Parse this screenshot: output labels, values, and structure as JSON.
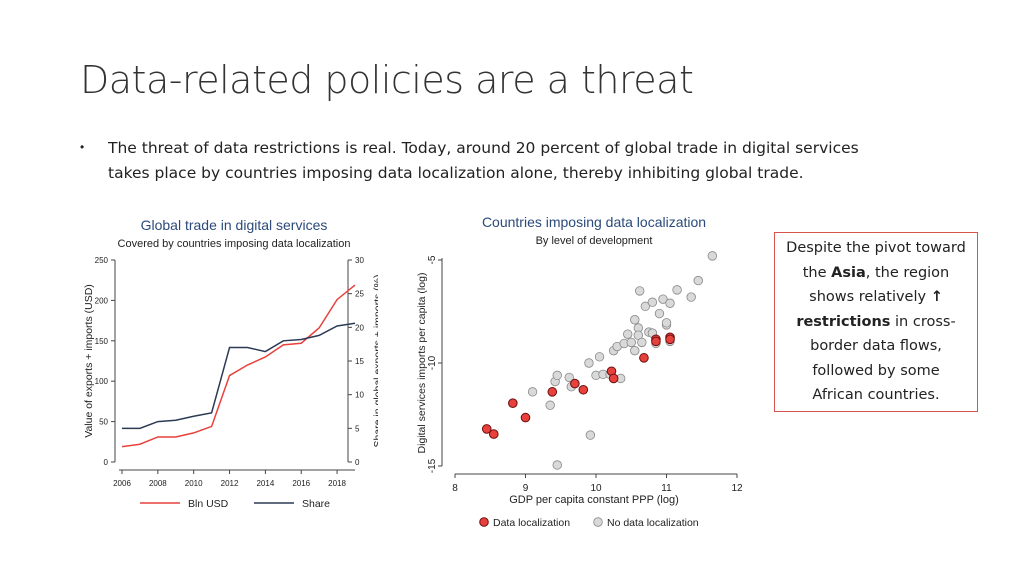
{
  "slide": {
    "title": "Data-related policies are a threat",
    "bullet_symbol": "•",
    "bullet_text": "The threat of data restrictions is real. Today, around 20 percent of global trade in digital services takes place by countries imposing data localization alone, thereby inhibiting global trade."
  },
  "callout": {
    "part1": "Despite the pivot toward the ",
    "bold1": "Asia",
    "part2": ", the region shows relatively ",
    "arrow": "↑",
    "bold2": " restrictions",
    "part3": " in cross-border data flows, followed by some African countries.",
    "border_color": "#d9534f"
  },
  "chart_data": [
    {
      "type": "line",
      "title": "Global trade in digital services",
      "subtitle": "Covered by countries imposing data localization",
      "ylabel": "Value of exports + imports (USD)",
      "ylabel_right": "Share in global exports + imports (%)",
      "xlabel": "",
      "x": [
        2006,
        2007,
        2008,
        2009,
        2010,
        2011,
        2012,
        2013,
        2014,
        2015,
        2016,
        2017,
        2018,
        2019
      ],
      "x_ticks": [
        "2006",
        "2008",
        "2010",
        "2012",
        "2014",
        "2016",
        "2018"
      ],
      "ylim": [
        0,
        250
      ],
      "y_ticks": [
        "0",
        "50",
        "100",
        "150",
        "200",
        "250"
      ],
      "ylim_right": [
        0,
        30
      ],
      "y_ticks_right": [
        "0",
        "5",
        "10",
        "15",
        "20",
        "25",
        "30"
      ],
      "series": [
        {
          "name": "Bln USD",
          "axis": "left",
          "color": "#e8413c",
          "values": [
            19,
            22,
            31,
            31,
            36,
            44,
            107,
            120,
            130,
            145,
            147,
            166,
            201,
            219
          ]
        },
        {
          "name": "Share",
          "axis": "right",
          "color": "#2b3a55",
          "values": [
            5.0,
            5.0,
            6.0,
            6.2,
            6.8,
            7.3,
            17.0,
            17.0,
            16.4,
            18.0,
            18.2,
            18.8,
            20.2,
            20.6
          ]
        }
      ],
      "legend_position": "bottom",
      "grid": false
    },
    {
      "type": "scatter",
      "title": "Countries imposing data localization",
      "subtitle": "By level of development",
      "xlabel": "GDP per capita constant PPP (log)",
      "ylabel": "Digital services imports per capita (log)",
      "xlim": [
        8,
        12
      ],
      "ylim": [
        -15,
        -5
      ],
      "x_ticks": [
        "8",
        "9",
        "10",
        "11",
        "12"
      ],
      "y_ticks": [
        "-15",
        "-10",
        "-5"
      ],
      "legend_position": "bottom",
      "grid": false,
      "series": [
        {
          "name": "Data localization",
          "color": "#e8413c",
          "points": [
            [
              8.45,
              -13.2
            ],
            [
              8.55,
              -13.45
            ],
            [
              8.82,
              -11.95
            ],
            [
              9.0,
              -12.65
            ],
            [
              9.38,
              -11.4
            ],
            [
              9.7,
              -11.0
            ],
            [
              9.82,
              -11.3
            ],
            [
              10.22,
              -10.4
            ],
            [
              10.25,
              -10.75
            ],
            [
              10.68,
              -9.75
            ],
            [
              10.85,
              -8.85
            ],
            [
              10.85,
              -8.95
            ],
            [
              11.05,
              -8.75
            ],
            [
              11.05,
              -8.85
            ]
          ]
        },
        {
          "name": "No data localization",
          "color": "#d9d9d9",
          "points": [
            [
              9.1,
              -11.4
            ],
            [
              9.35,
              -12.05
            ],
            [
              9.42,
              -10.9
            ],
            [
              9.45,
              -10.6
            ],
            [
              9.62,
              -10.7
            ],
            [
              9.65,
              -11.15
            ],
            [
              9.9,
              -10.0
            ],
            [
              10.0,
              -10.6
            ],
            [
              10.05,
              -9.7
            ],
            [
              10.1,
              -10.55
            ],
            [
              10.2,
              -10.55
            ],
            [
              10.25,
              -9.4
            ],
            [
              10.3,
              -9.2
            ],
            [
              10.35,
              -10.75
            ],
            [
              10.4,
              -9.05
            ],
            [
              10.45,
              -8.6
            ],
            [
              10.5,
              -9.0
            ],
            [
              10.55,
              -9.4
            ],
            [
              10.55,
              -7.9
            ],
            [
              10.6,
              -8.3
            ],
            [
              10.6,
              -8.65
            ],
            [
              10.62,
              -6.5
            ],
            [
              10.65,
              -9.0
            ],
            [
              10.7,
              -7.25
            ],
            [
              10.75,
              -8.5
            ],
            [
              10.8,
              -7.05
            ],
            [
              10.85,
              -9.05
            ],
            [
              10.9,
              -7.6
            ],
            [
              10.95,
              -6.9
            ],
            [
              11.0,
              -8.15
            ],
            [
              11.05,
              -7.1
            ],
            [
              11.05,
              -8.95
            ],
            [
              11.15,
              -6.45
            ],
            [
              11.35,
              -6.8
            ],
            [
              11.45,
              -6.0
            ],
            [
              11.65,
              -4.8
            ],
            [
              9.45,
              -14.95
            ],
            [
              9.92,
              -13.5
            ],
            [
              11.0,
              -8.05
            ],
            [
              10.8,
              -8.55
            ]
          ]
        }
      ]
    }
  ]
}
